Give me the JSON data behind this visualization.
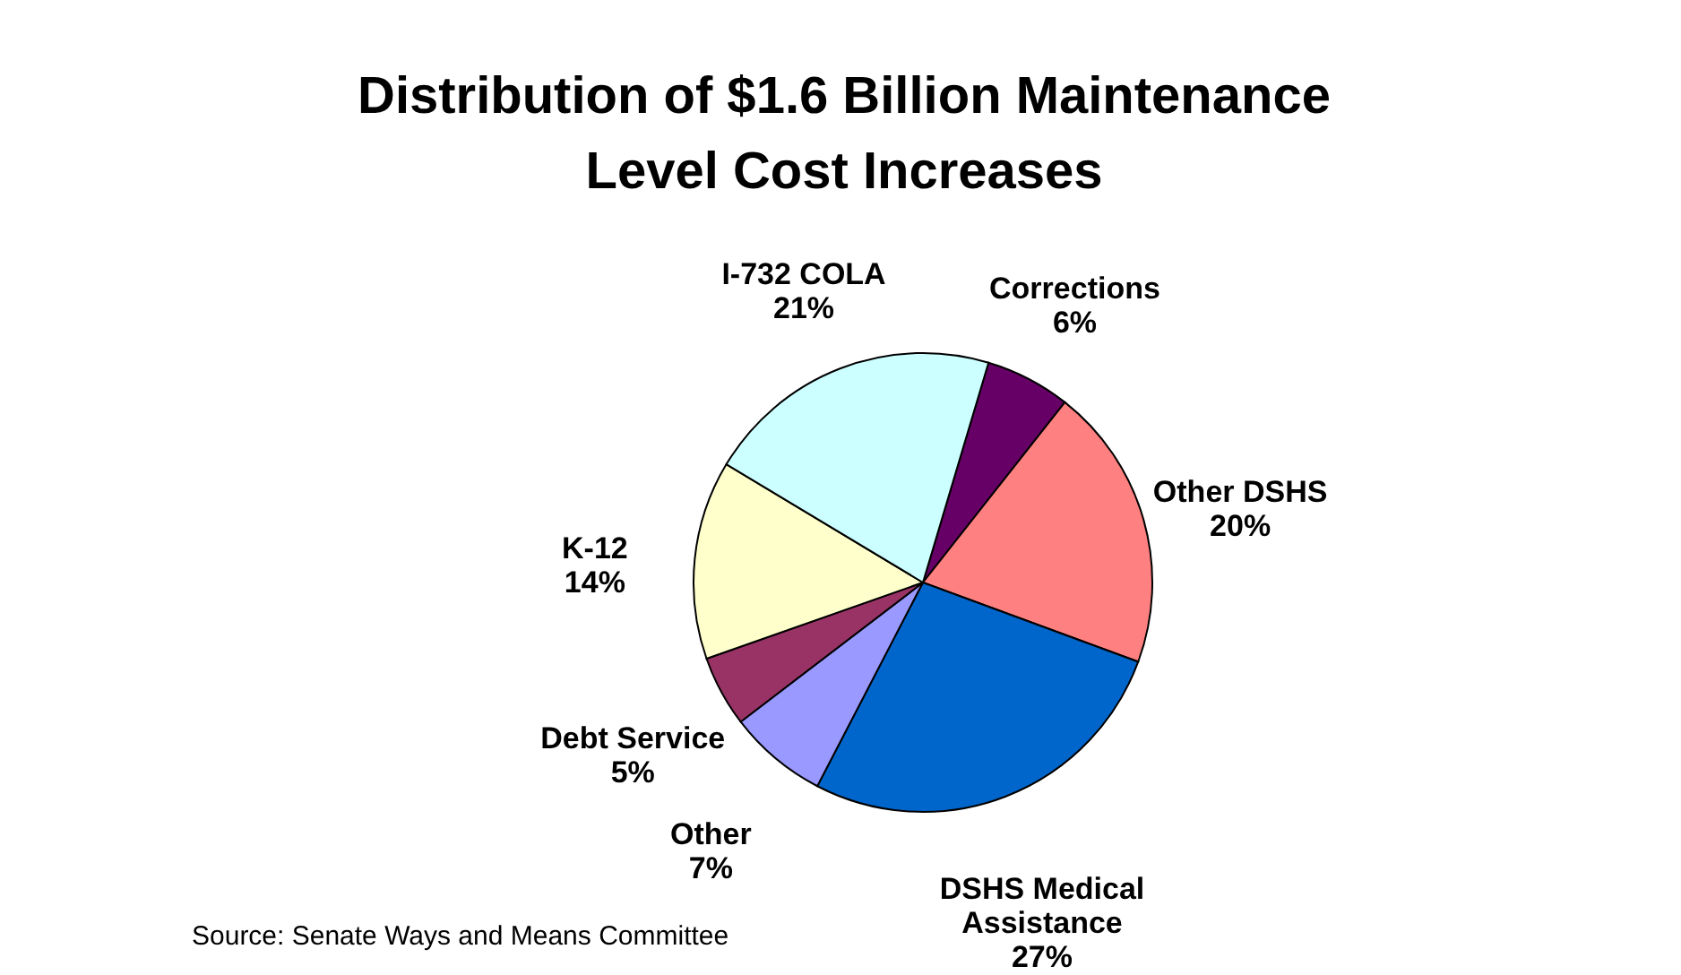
{
  "chart_data": {
    "type": "pie",
    "title": "Distribution of $1.6 Billion Maintenance Level Cost Increases",
    "categories": [
      "Corrections",
      "Other DSHS",
      "DSHS Medical Assistance",
      "Other",
      "Debt Service",
      "K-12",
      "I-732 COLA"
    ],
    "values": [
      6,
      20,
      27,
      7,
      5,
      14,
      21
    ],
    "colors": [
      "#660066",
      "#ff8080",
      "#0066cc",
      "#9999ff",
      "#993366",
      "#ffffcc",
      "#ccffff"
    ],
    "value_labels": [
      "6%",
      "20%",
      "27%",
      "7%",
      "5%",
      "14%",
      "21%"
    ],
    "annotations": [
      "Source: Senate Ways and Means Committee"
    ]
  }
}
